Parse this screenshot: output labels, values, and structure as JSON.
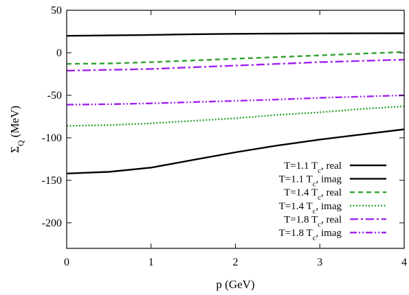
{
  "chart_data": {
    "type": "line",
    "xlabel": "p (GeV)",
    "ylabel": "ΣQ (MeV)",
    "xlim": [
      0,
      4
    ],
    "ylim": [
      -230,
      50
    ],
    "xticks": [
      "0",
      "1",
      "2",
      "3",
      "4"
    ],
    "yticks": [
      "-200",
      "-150",
      "-100",
      "-50",
      "0",
      "50"
    ],
    "legend_position": "bottom-right",
    "grid": false,
    "series": [
      {
        "name": "T=1.1 Tc, real",
        "color": "#000000",
        "dash": "solid",
        "x": [
          0,
          0.5,
          1,
          1.5,
          2,
          2.5,
          3,
          3.5,
          4
        ],
        "y": [
          20,
          20.5,
          21,
          21.8,
          22.3,
          22.6,
          22.8,
          22.9,
          23
        ]
      },
      {
        "name": "T=1.1 Tc, imag",
        "color": "#000000",
        "dash": "solid",
        "x": [
          0,
          0.5,
          1,
          1.5,
          2,
          2.5,
          3,
          3.5,
          4
        ],
        "y": [
          -142,
          -140,
          -135,
          -126,
          -117,
          -109,
          -102,
          -96,
          -90
        ]
      },
      {
        "name": "T=1.4 Tc, real",
        "color": "#2ca02c",
        "dash": "dashed",
        "x": [
          0,
          0.5,
          1,
          1.5,
          2,
          2.5,
          3,
          3.5,
          4
        ],
        "y": [
          -13,
          -12.5,
          -11,
          -9,
          -7,
          -5,
          -3,
          -1,
          1
        ]
      },
      {
        "name": "T=1.4 Tc, imag",
        "color": "#2ca02c",
        "dash": "dotted",
        "x": [
          0,
          0.5,
          1,
          1.5,
          2,
          2.5,
          3,
          3.5,
          4
        ],
        "y": [
          -86,
          -85,
          -83,
          -80,
          -77,
          -73,
          -70,
          -66,
          -63
        ]
      },
      {
        "name": "T=1.8 Tc, real",
        "color": "#a020f0",
        "dash": "dashdot",
        "x": [
          0,
          0.5,
          1,
          1.5,
          2,
          2.5,
          3,
          3.5,
          4
        ],
        "y": [
          -21,
          -20,
          -19,
          -17,
          -15,
          -13,
          -11,
          -9.5,
          -8
        ]
      },
      {
        "name": "T=1.8 Tc, imag",
        "color": "#a020f0",
        "dash": "dashdotdot",
        "x": [
          0,
          0.5,
          1,
          1.5,
          2,
          2.5,
          3,
          3.5,
          4
        ],
        "y": [
          -61,
          -60.5,
          -59.5,
          -58,
          -56.5,
          -55,
          -53,
          -51.5,
          -50
        ]
      }
    ]
  }
}
